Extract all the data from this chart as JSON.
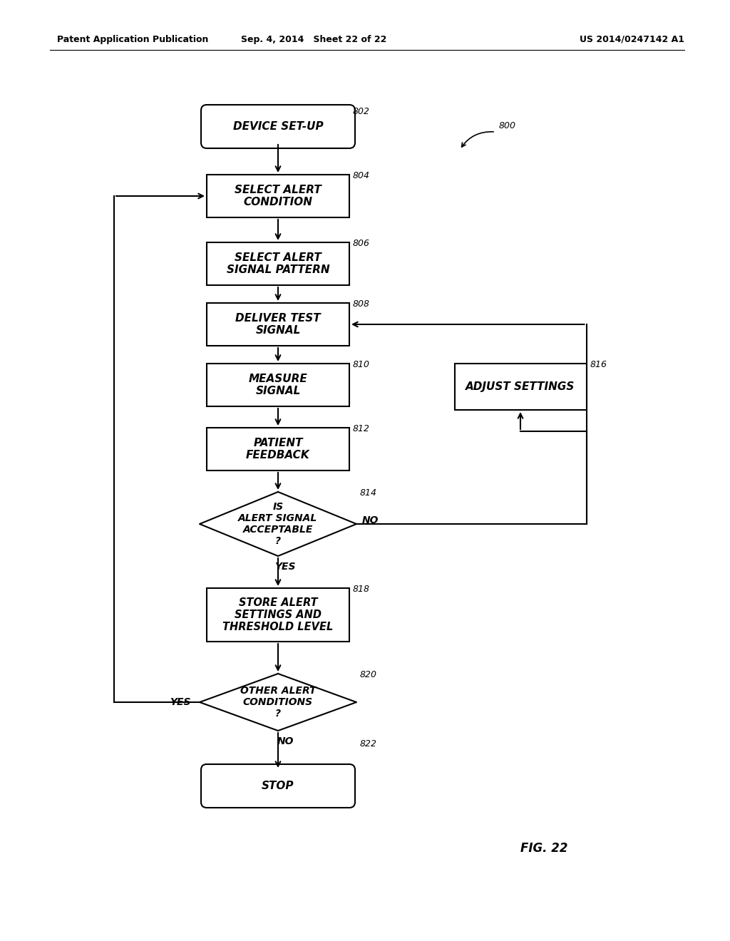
{
  "bg_color": "#ffffff",
  "header_left": "Patent Application Publication",
  "header_mid": "Sep. 4, 2014   Sheet 22 of 22",
  "header_right": "US 2014/0247142 A1",
  "fig_label": "FIG. 22",
  "diagram_label": "800"
}
